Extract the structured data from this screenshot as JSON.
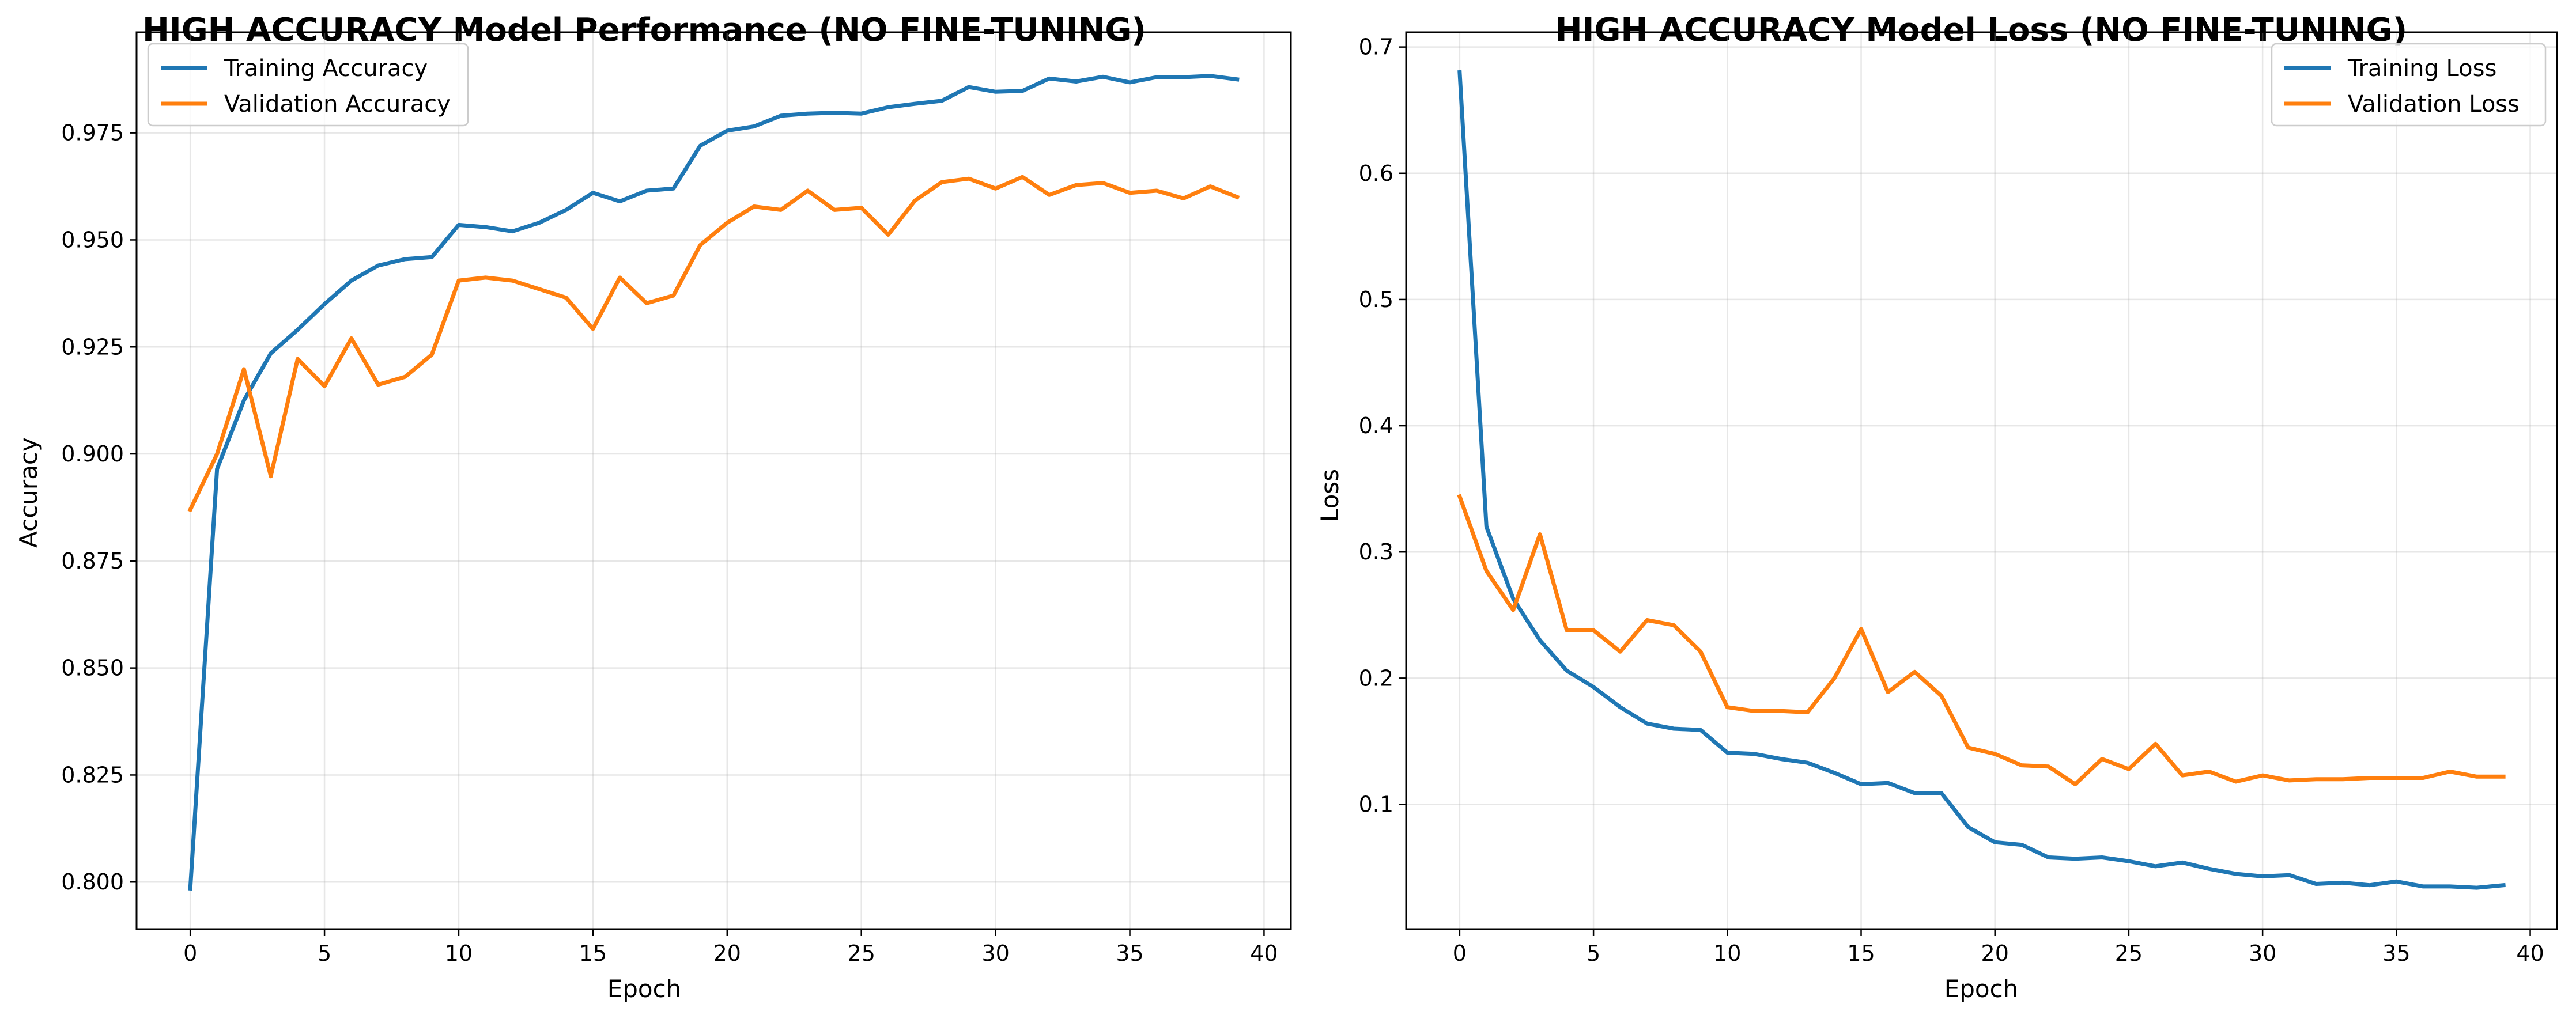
{
  "chart_data": [
    {
      "type": "line",
      "title": "HIGH ACCURACY Model Performance (NO FINE-TUNING)",
      "xlabel": "Epoch",
      "ylabel": "Accuracy",
      "xlim": [
        -2,
        41
      ],
      "ylim": [
        0.789,
        0.9985
      ],
      "xticks": [
        0,
        5,
        10,
        15,
        20,
        25,
        30,
        35,
        40
      ],
      "yticks": [
        0.8,
        0.825,
        0.85,
        0.875,
        0.9,
        0.925,
        0.95,
        0.975
      ],
      "ytick_labels": [
        "0.800",
        "0.825",
        "0.850",
        "0.875",
        "0.900",
        "0.925",
        "0.950",
        "0.975"
      ],
      "grid": true,
      "legend": "upper-left",
      "x": [
        0,
        1,
        2,
        3,
        4,
        5,
        6,
        7,
        8,
        9,
        10,
        11,
        12,
        13,
        14,
        15,
        16,
        17,
        18,
        19,
        20,
        21,
        22,
        23,
        24,
        25,
        26,
        27,
        28,
        29,
        30,
        31,
        32,
        33,
        34,
        35,
        36,
        37,
        38,
        39
      ],
      "series": [
        {
          "name": "Training Accuracy",
          "color": "#1f77b4",
          "values": [
            0.7985,
            0.8965,
            0.9125,
            0.9235,
            0.929,
            0.935,
            0.9405,
            0.944,
            0.9455,
            0.946,
            0.9535,
            0.953,
            0.952,
            0.954,
            0.957,
            0.961,
            0.959,
            0.9615,
            0.962,
            0.972,
            0.9755,
            0.9765,
            0.979,
            0.9795,
            0.9797,
            0.9795,
            0.981,
            0.9818,
            0.9825,
            0.9857,
            0.9846,
            0.9848,
            0.9877,
            0.987,
            0.9881,
            0.9868,
            0.988,
            0.988,
            0.9883,
            0.9875
          ]
        },
        {
          "name": "Validation Accuracy",
          "color": "#ff7f0e",
          "values": [
            0.887,
            0.9,
            0.9198,
            0.8948,
            0.9222,
            0.9158,
            0.927,
            0.9162,
            0.918,
            0.9232,
            0.9405,
            0.9412,
            0.9405,
            0.9385,
            0.9365,
            0.9292,
            0.9412,
            0.9352,
            0.937,
            0.9488,
            0.954,
            0.9578,
            0.957,
            0.9615,
            0.957,
            0.9575,
            0.9512,
            0.9592,
            0.9635,
            0.9643,
            0.962,
            0.9647,
            0.9605,
            0.9628,
            0.9633,
            0.961,
            0.9615,
            0.9597,
            0.9625,
            0.96
          ]
        }
      ]
    },
    {
      "type": "line",
      "title": "HIGH ACCURACY Model Loss (NO FINE-TUNING)",
      "xlabel": "Epoch",
      "ylabel": "Loss",
      "xlim": [
        -2,
        41
      ],
      "ylim": [
        0.0012,
        0.7117
      ],
      "xticks": [
        0,
        5,
        10,
        15,
        20,
        25,
        30,
        35,
        40
      ],
      "yticks": [
        0.1,
        0.2,
        0.3,
        0.4,
        0.5,
        0.6,
        0.7
      ],
      "ytick_labels": [
        "0.1",
        "0.2",
        "0.3",
        "0.4",
        "0.5",
        "0.6",
        "0.7"
      ],
      "grid": true,
      "legend": "upper-right",
      "x": [
        0,
        1,
        2,
        3,
        4,
        5,
        6,
        7,
        8,
        9,
        10,
        11,
        12,
        13,
        14,
        15,
        16,
        17,
        18,
        19,
        20,
        21,
        22,
        23,
        24,
        25,
        26,
        27,
        28,
        29,
        30,
        31,
        32,
        33,
        34,
        35,
        36,
        37,
        38,
        39
      ],
      "series": [
        {
          "name": "Training Loss",
          "color": "#1f77b4",
          "values": [
            0.68,
            0.32,
            0.263,
            0.23,
            0.206,
            0.193,
            0.177,
            0.164,
            0.16,
            0.159,
            0.141,
            0.14,
            0.136,
            0.133,
            0.125,
            0.116,
            0.117,
            0.109,
            0.109,
            0.082,
            0.07,
            0.068,
            0.058,
            0.057,
            0.058,
            0.055,
            0.051,
            0.054,
            0.049,
            0.045,
            0.043,
            0.044,
            0.037,
            0.038,
            0.036,
            0.039,
            0.035,
            0.035,
            0.034,
            0.036
          ]
        },
        {
          "name": "Validation Loss",
          "color": "#ff7f0e",
          "values": [
            0.344,
            0.285,
            0.254,
            0.314,
            0.238,
            0.238,
            0.221,
            0.246,
            0.242,
            0.221,
            0.177,
            0.174,
            0.174,
            0.173,
            0.2,
            0.239,
            0.189,
            0.205,
            0.186,
            0.145,
            0.14,
            0.131,
            0.13,
            0.116,
            0.136,
            0.128,
            0.148,
            0.123,
            0.126,
            0.118,
            0.123,
            0.119,
            0.12,
            0.12,
            0.121,
            0.121,
            0.121,
            0.126,
            0.122,
            0.122
          ]
        }
      ]
    }
  ]
}
